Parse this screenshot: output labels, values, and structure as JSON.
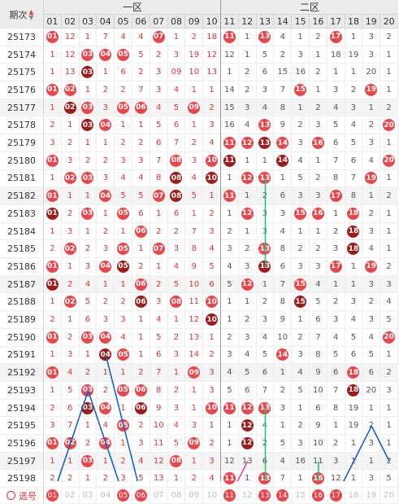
{
  "header": {
    "issue_label": "期次",
    "sort_icon": "sort-icon",
    "zone1_label": "一区",
    "zone2_label": "二区",
    "columns": [
      "01",
      "02",
      "03",
      "04",
      "05",
      "06",
      "07",
      "08",
      "09",
      "10",
      "11",
      "12",
      "13",
      "14",
      "15",
      "16",
      "17",
      "18",
      "19",
      "20"
    ]
  },
  "rows": [
    {
      "issue": "25173",
      "cells": [
        "01",
        "12",
        "1",
        "7",
        "4",
        "4",
        "07",
        "1",
        "2",
        "18",
        "11",
        "1",
        "13",
        "4",
        "1",
        "2",
        "17",
        "1",
        "3",
        "2"
      ]
    },
    {
      "issue": "25174",
      "cells": [
        "1",
        "12",
        "03",
        "04",
        "05",
        "5",
        "2",
        "3",
        "19",
        "12",
        "12",
        "1",
        "5",
        "2",
        "3",
        "1",
        "18",
        "19",
        "3",
        "1"
      ]
    },
    {
      "issue": "25175",
      "cells": [
        "1",
        "13",
        "03",
        "1",
        "6",
        "2",
        "3",
        "09",
        "10",
        "13",
        "1",
        "2",
        "6",
        "15",
        "16",
        "2",
        "1",
        "1",
        "20",
        "1"
      ]
    },
    {
      "issue": "25176",
      "cells": [
        "01",
        "02",
        "1",
        "2",
        "2",
        "7",
        "3",
        "4",
        "1",
        "1",
        "14",
        "2",
        "3",
        "7",
        "15",
        "1",
        "3",
        "2",
        "19",
        "1"
      ]
    },
    {
      "issue": "25177",
      "cells": [
        "1",
        "02",
        "03",
        "3",
        "05",
        "06",
        "4",
        "5",
        "09",
        "2",
        "15",
        "3",
        "4",
        "8",
        "1",
        "2",
        "4",
        "3",
        "1",
        "2"
      ]
    },
    {
      "issue": "25178",
      "cells": [
        "2",
        "1",
        "03",
        "04",
        "1",
        "1",
        "5",
        "6",
        "1",
        "3",
        "16",
        "4",
        "13",
        "9",
        "2",
        "3",
        "5",
        "4",
        "2",
        "20"
      ]
    },
    {
      "issue": "25179",
      "cells": [
        "3",
        "2",
        "1",
        "1",
        "2",
        "2",
        "6",
        "7",
        "2",
        "4",
        "11",
        "12",
        "13",
        "14",
        "3",
        "16",
        "6",
        "5",
        "3",
        "1"
      ]
    },
    {
      "issue": "25180",
      "cells": [
        "01",
        "3",
        "2",
        "2",
        "3",
        "3",
        "7",
        "08",
        "3",
        "10",
        "11",
        "1",
        "1",
        "14",
        "4",
        "1",
        "7",
        "6",
        "4",
        "20"
      ]
    },
    {
      "issue": "25181",
      "cells": [
        "1",
        "02",
        "03",
        "3",
        "4",
        "4",
        "8",
        "08",
        "4",
        "10",
        "1",
        "12",
        "13",
        "1",
        "5",
        "2",
        "8",
        "7",
        "19",
        "1"
      ]
    },
    {
      "issue": "25182",
      "cells": [
        "01",
        "1",
        "1",
        "04",
        "5",
        "5",
        "07",
        "08",
        "5",
        "1",
        "11",
        "1",
        "2",
        "6",
        "3",
        "3",
        "17",
        "8",
        "1",
        "2"
      ]
    },
    {
      "issue": "25183",
      "cells": [
        "01",
        "2",
        "03",
        "1",
        "05",
        "6",
        "1",
        "6",
        "1",
        "2",
        "1",
        "12",
        "3",
        "3",
        "15",
        "16",
        "1",
        "18",
        "2",
        "1"
      ]
    },
    {
      "issue": "25184",
      "cells": [
        "1",
        "3",
        "1",
        "2",
        "1",
        "06",
        "2",
        "2",
        "7",
        "3",
        "2",
        "1",
        "3",
        "4",
        "1",
        "1",
        "2",
        "18",
        "3",
        "1"
      ]
    },
    {
      "issue": "25185",
      "cells": [
        "2",
        "02",
        "2",
        "3",
        "05",
        "1",
        "07",
        "3",
        "8",
        "4",
        "3",
        "2",
        "13",
        "8",
        "2",
        "2",
        "3",
        "18",
        "4",
        "1"
      ]
    },
    {
      "issue": "25186",
      "cells": [
        "01",
        "1",
        "3",
        "04",
        "05",
        "2",
        "1",
        "4",
        "9",
        "5",
        "4",
        "3",
        "13",
        "6",
        "3",
        "3",
        "17",
        "1",
        "19",
        "2"
      ]
    },
    {
      "issue": "25187",
      "cells": [
        "01",
        "2",
        "4",
        "1",
        "1",
        "06",
        "2",
        "5",
        "10",
        "6",
        "5",
        "12",
        "1",
        "7",
        "15",
        "4",
        "1",
        "1",
        "3",
        "3"
      ]
    },
    {
      "issue": "25188",
      "cells": [
        "1",
        "02",
        "5",
        "2",
        "2",
        "06",
        "3",
        "08",
        "11",
        "10",
        "1",
        "1",
        "2",
        "8",
        "15",
        "5",
        "2",
        "3",
        "2",
        "4"
      ]
    },
    {
      "issue": "25189",
      "cells": [
        "2",
        "1",
        "6",
        "3",
        "3",
        "1",
        "4",
        "1",
        "12",
        "10",
        "1",
        "2",
        "3",
        "9",
        "1",
        "6",
        "3",
        "4",
        "3",
        "5"
      ]
    },
    {
      "issue": "25190",
      "cells": [
        "01",
        "2",
        "03",
        "04",
        "4",
        "1",
        "5",
        "2",
        "13",
        "1",
        "2",
        "3",
        "4",
        "10",
        "2",
        "7",
        "4",
        "5",
        "4",
        "20"
      ]
    },
    {
      "issue": "25191",
      "cells": [
        "1",
        "3",
        "1",
        "04",
        "05",
        "1",
        "6",
        "3",
        "14",
        "2",
        "3",
        "4",
        "5",
        "14",
        "3",
        "8",
        "5",
        "6",
        "5",
        "1"
      ]
    },
    {
      "issue": "25192",
      "cells": [
        "01",
        "4",
        "2",
        "1",
        "1",
        "2",
        "7",
        "1",
        "09",
        "3",
        "4",
        "5",
        "6",
        "1",
        "4",
        "9",
        "6",
        "18",
        "6",
        "2"
      ]
    },
    {
      "issue": "25193",
      "cells": [
        "1",
        "5",
        "03",
        "2",
        "05",
        "06",
        "8",
        "2",
        "1",
        "3",
        "5",
        "6",
        "7",
        "2",
        "5",
        "10",
        "7",
        "18",
        "20",
        "3"
      ]
    },
    {
      "issue": "25194",
      "cells": [
        "2",
        "6",
        "03",
        "04",
        "1",
        "06",
        "9",
        "3",
        "1",
        "10",
        "11",
        "12",
        "13",
        "3",
        "1",
        "6",
        "8",
        "19",
        "1",
        "1"
      ]
    },
    {
      "issue": "25195",
      "cells": [
        "3",
        "7",
        "1",
        "4",
        "05",
        "2",
        "10",
        "4",
        "3",
        "1",
        "1",
        "12",
        "4",
        "1",
        "2",
        "9",
        "1",
        "19",
        "2",
        "1"
      ]
    },
    {
      "issue": "25196",
      "cells": [
        "01",
        "02",
        "2",
        "04",
        "1",
        "3",
        "11",
        "5",
        "09",
        "2",
        "1",
        "12",
        "2",
        "5",
        "3",
        "10",
        "2",
        "1",
        "3",
        "1"
      ]
    },
    {
      "issue": "25197",
      "cells": [
        "1",
        "1",
        "03",
        "1",
        "2",
        "4",
        "12",
        "08",
        "1",
        "3",
        "12",
        "13",
        "6",
        "4",
        "16",
        "11",
        "3",
        "1",
        "1",
        "2"
      ]
    },
    {
      "issue": "25198",
      "cells": [
        "2",
        "2",
        "1",
        "2",
        "3",
        "5",
        "13",
        "1",
        "2",
        "4",
        "11",
        "1",
        "13",
        "7",
        "1",
        "16",
        "12",
        "1",
        "3",
        "5"
      ]
    }
  ],
  "select_row": {
    "label": "选号",
    "selected": [
      "01",
      "05",
      "06",
      "11",
      "13",
      "14",
      "16",
      "17"
    ],
    "cells": [
      "01",
      "02",
      "03",
      "04",
      "05",
      "06",
      "07",
      "08",
      "09",
      "10",
      "11",
      "12",
      "13",
      "14",
      "15",
      "16",
      "17",
      "18",
      "19",
      "20"
    ]
  },
  "colors": {
    "hit": "#e8464a",
    "repeat": "#9e1b1b",
    "line_blue": "#1f5fbf",
    "line_green": "#2bbf7a",
    "line_pink": "#e84a9a"
  }
}
